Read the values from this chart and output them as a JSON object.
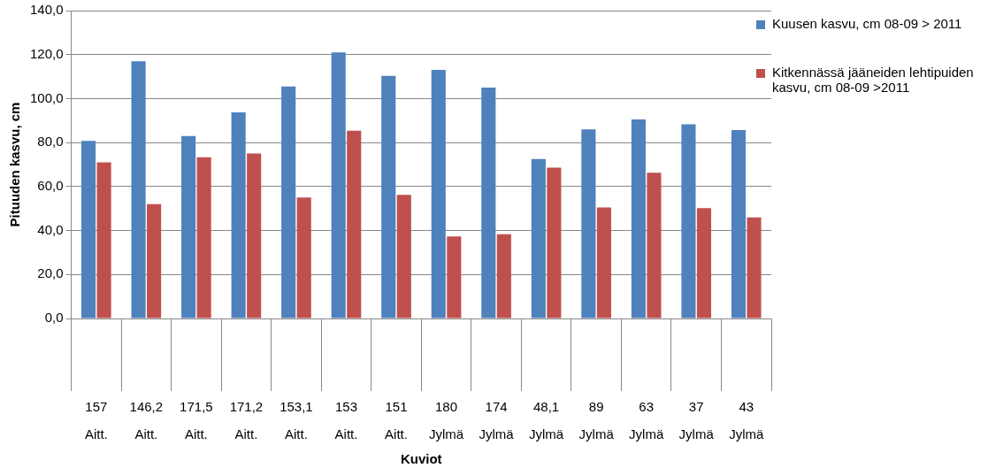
{
  "chart_data": {
    "type": "bar",
    "xlabel": "Kuviot",
    "ylabel": "Pituuden kasvu, cm",
    "categories": [
      "157\nAitt.",
      "146,2\nAitt.",
      "171,5\nAitt.",
      "171,2\nAitt.",
      "153,1\nAitt.",
      "153\nAitt.",
      "151\nAitt.",
      "180\nJylmä",
      "174\nJylmä",
      "48,1\nJylmä",
      "89\nJylmä",
      "63\nJylmä",
      "37\nJylmä",
      "43\nJylmä"
    ],
    "series": [
      {
        "name": "Kuusen kasvu, cm 08-09 > 2011",
        "color": "#4f81bd",
        "values": [
          80.8,
          117,
          83,
          93.7,
          105.5,
          121,
          110.3,
          113,
          105,
          72.5,
          86,
          90.5,
          88.3,
          85.7
        ]
      },
      {
        "name": "Kitkennässä jääneiden lehtipuiden kasvu, cm 08-09 >2011",
        "color": "#c0504d",
        "values": [
          71,
          52,
          73.3,
          75,
          55,
          85.4,
          56.2,
          37.3,
          38.3,
          68.6,
          50.5,
          66.3,
          50.2,
          46
        ]
      }
    ],
    "ylim": [
      0,
      140
    ],
    "yticks": [
      {
        "value": 0,
        "label": "0,0"
      },
      {
        "value": 20,
        "label": "20,0"
      },
      {
        "value": 40,
        "label": "40,0"
      },
      {
        "value": 60,
        "label": "60,0"
      },
      {
        "value": 80,
        "label": "80,0"
      },
      {
        "value": 100,
        "label": "100,0"
      },
      {
        "value": 120,
        "label": "120,0"
      },
      {
        "value": 140,
        "label": "140,0"
      }
    ],
    "grid": "y",
    "legend": "right"
  }
}
